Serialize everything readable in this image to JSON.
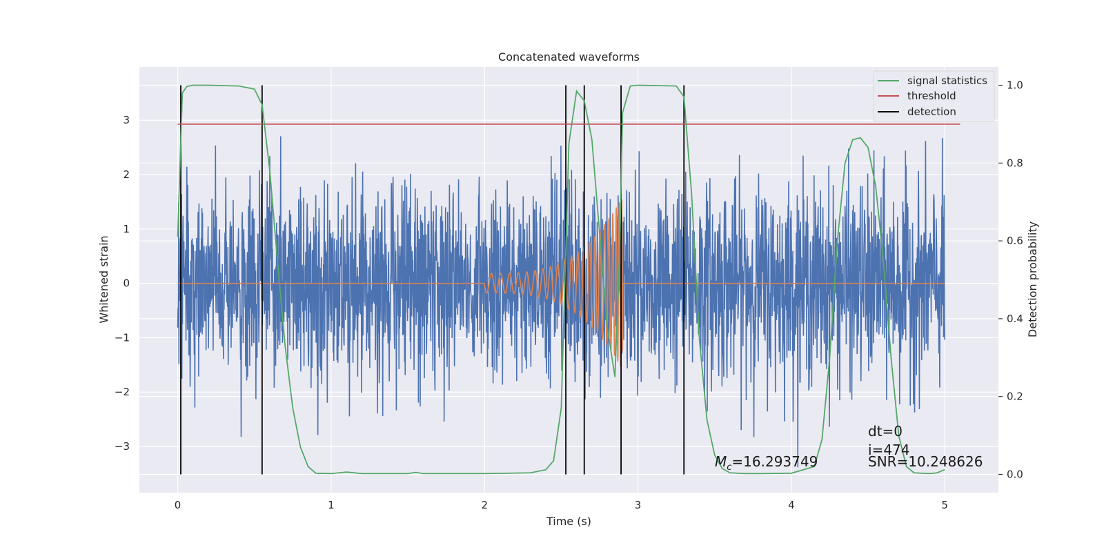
{
  "chart_data": {
    "type": "line",
    "title": "Concatenated waveforms",
    "xlabel": "Time (s)",
    "ylabel_left": "Whitened strain",
    "ylabel_right": "Detection probability",
    "xlim": [
      -0.25,
      5.35
    ],
    "ylim_left": [
      -3.85,
      3.98
    ],
    "ylim_right": [
      -0.047,
      1.047
    ],
    "x_ticks": [
      0,
      1,
      2,
      3,
      4,
      5
    ],
    "x_tick_labels": [
      "0",
      "1",
      "2",
      "3",
      "4",
      "5"
    ],
    "y_left_ticks": [
      -3,
      -2,
      -1,
      0,
      1,
      2,
      3
    ],
    "y_left_tick_labels": [
      "−3",
      "−2",
      "−1",
      "0",
      "1",
      "2",
      "3"
    ],
    "y_right_ticks": [
      0.0,
      0.2,
      0.4,
      0.6,
      0.8,
      1.0
    ],
    "y_right_tick_labels": [
      "0.0",
      "0.2",
      "0.4",
      "0.6",
      "0.8",
      "1.0"
    ],
    "grid": true,
    "legend_placement": "upper-right",
    "noise_series": {
      "color": "#4c72b0",
      "x_range": [
        0,
        5
      ],
      "typical_amplitude": 0.9,
      "max_abs": 3.5
    },
    "injected_chirp": {
      "color": "#dd8452",
      "x_start": 2.0,
      "x_end": 2.9,
      "amplitude_start": 0.18,
      "amplitude_end": 1.6
    },
    "signal_statistics": {
      "name": "signal statistics",
      "color": "#55a868",
      "x": [
        0.0,
        0.03,
        0.06,
        0.1,
        0.2,
        0.4,
        0.5,
        0.55,
        0.6,
        0.65,
        0.7,
        0.75,
        0.8,
        0.85,
        0.9,
        1.0,
        1.1,
        1.2,
        1.5,
        1.55,
        1.6,
        2.0,
        2.3,
        2.4,
        2.45,
        2.5,
        2.55,
        2.6,
        2.65,
        2.7,
        2.75,
        2.8,
        2.85,
        2.88,
        2.9,
        2.95,
        3.0,
        3.25,
        3.3,
        3.35,
        3.4,
        3.45,
        3.5,
        3.55,
        3.6,
        3.7,
        3.8,
        4.0,
        4.15,
        4.2,
        4.25,
        4.3,
        4.35,
        4.4,
        4.45,
        4.5,
        4.55,
        4.6,
        4.65,
        4.7,
        4.75,
        4.8,
        4.9,
        4.95,
        5.0
      ],
      "y": [
        0.61,
        0.98,
        0.997,
        1.0,
        1.0,
        0.998,
        0.99,
        0.95,
        0.78,
        0.55,
        0.33,
        0.17,
        0.07,
        0.02,
        0.003,
        0.002,
        0.006,
        0.002,
        0.002,
        0.005,
        0.002,
        0.002,
        0.004,
        0.012,
        0.035,
        0.17,
        0.85,
        0.985,
        0.96,
        0.86,
        0.62,
        0.38,
        0.25,
        0.56,
        0.93,
        0.998,
        1.0,
        0.998,
        0.97,
        0.72,
        0.35,
        0.14,
        0.05,
        0.015,
        0.004,
        0.002,
        0.002,
        0.003,
        0.02,
        0.09,
        0.3,
        0.6,
        0.8,
        0.86,
        0.865,
        0.84,
        0.74,
        0.55,
        0.3,
        0.1,
        0.02,
        0.004,
        0.002,
        0.004,
        0.012
      ]
    },
    "threshold": {
      "name": "threshold",
      "color": "#c44e52",
      "value": 0.9,
      "x_range": [
        0.0,
        5.1
      ]
    },
    "detections": {
      "name": "detection",
      "color": "#000000",
      "x": [
        0.02,
        0.55,
        2.53,
        2.65,
        2.89,
        3.3
      ]
    },
    "annotations": {
      "mc": "=16.293749",
      "mc_symbol": "M",
      "mc_sub": "c",
      "dt": "dt=0",
      "i": "i=474",
      "snr": "SNR=10.248626"
    },
    "legend": [
      "signal statistics",
      "threshold",
      "detection"
    ]
  },
  "colors": {
    "plot_background": "#eaeaf2",
    "grid": "#ffffff",
    "noise": "#4c72b0",
    "chirp": "#dd8452",
    "signal": "#55a868",
    "threshold": "#c44e52",
    "detection": "#000000"
  }
}
